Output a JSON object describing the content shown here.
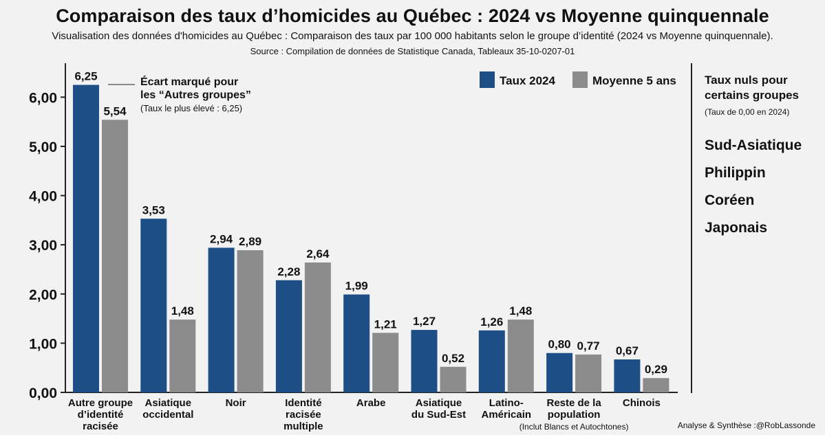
{
  "title": "Comparaison des taux d’homicides au Québec : 2024 vs Moyenne quinquennale",
  "subtitle": "Visualisation des données d'homicides au Québec : Comparaison des taux par 100 000 habitants selon le groupe d’identité (2024 vs Moyenne quinquennale).",
  "source": "Source : Compilation de données de Statistique Canada, Tableaux 35-10-0207-01",
  "credit": "Analyse & Synthèse :@RobLassonde",
  "annotation": {
    "title_line1": "Écart marqué pour",
    "title_line2": "les “Autres groupes”",
    "sub": "(Taux le plus élevé : 6,25)"
  },
  "side_panel": {
    "title": "Taux nuls pour certains groupes",
    "subtitle": "(Taux de 0,00 en 2024)",
    "items": [
      "Sud-Asiatique",
      "Philippin",
      "Coréen",
      "Japonais"
    ]
  },
  "colors": {
    "series_2024": "#1d4e86",
    "series_avg": "#8c8c8c"
  },
  "chart_data": {
    "type": "bar",
    "categories": [
      [
        "Autre groupe",
        "d’identité",
        "racisée"
      ],
      [
        "Asiatique",
        "occidental"
      ],
      [
        "Noir"
      ],
      [
        "Identité",
        "racisée",
        "multiple"
      ],
      [
        "Arabe"
      ],
      [
        "Asiatique",
        "du Sud-Est"
      ],
      [
        "Latino-",
        "Américain"
      ],
      [
        "Reste de la",
        "population"
      ],
      [
        "Chinois"
      ]
    ],
    "category_notes": [
      "",
      "",
      "",
      "",
      "",
      "",
      "",
      "(Inclut Blancs et Autochtones)",
      ""
    ],
    "series": [
      {
        "name": "Taux 2024",
        "values": [
          6.25,
          3.53,
          2.94,
          2.28,
          1.99,
          1.27,
          1.26,
          0.8,
          0.67
        ],
        "labels": [
          "6,25",
          "3,53",
          "2,94",
          "2,28",
          "1,99",
          "1,27",
          "1,26",
          "0,80",
          "0,67"
        ]
      },
      {
        "name": "Moyenne 5 ans",
        "values": [
          5.54,
          1.48,
          2.89,
          2.64,
          1.21,
          0.52,
          1.48,
          0.77,
          0.29
        ],
        "labels": [
          "5,54",
          "1,48",
          "2,89",
          "2,64",
          "1,21",
          "0,52",
          "1,48",
          "0,77",
          "0,29"
        ]
      }
    ],
    "yticks": [
      0,
      1,
      2,
      3,
      4,
      5,
      6
    ],
    "ytick_labels": [
      "0,00",
      "1,00",
      "2,00",
      "3,00",
      "4,00",
      "5,00",
      "6,00"
    ],
    "ylim": [
      0,
      6.5
    ],
    "legend_position": "top-right"
  }
}
